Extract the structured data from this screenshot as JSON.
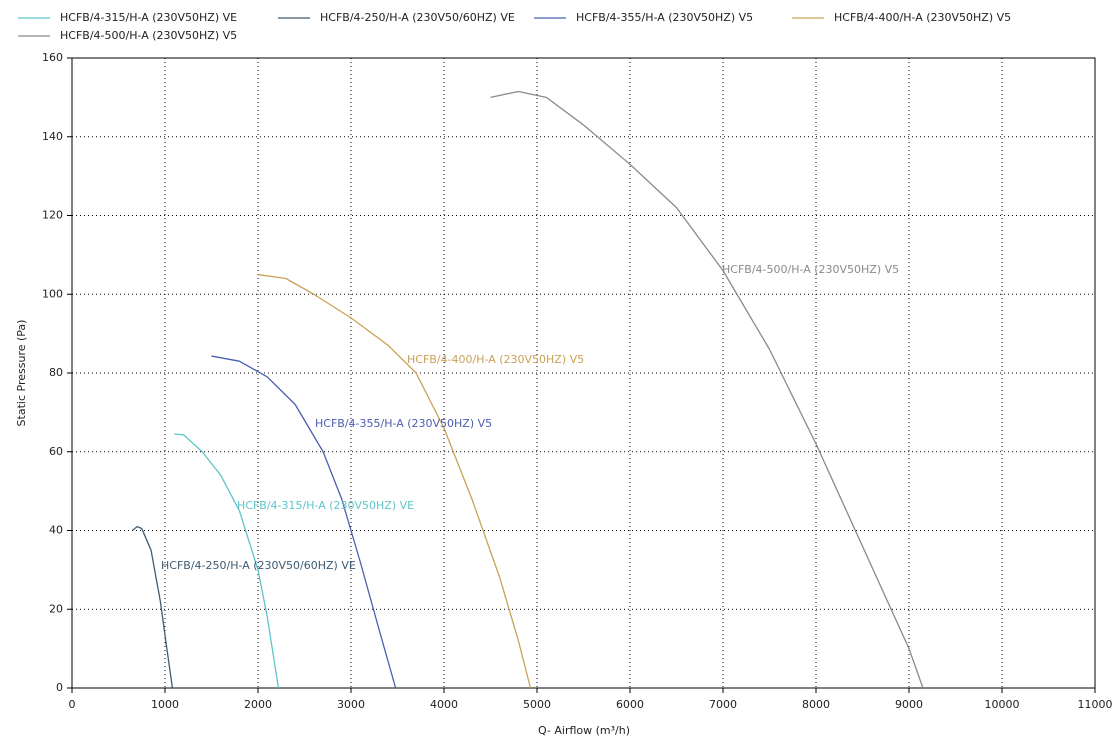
{
  "chart_data": {
    "type": "line",
    "xlabel": "Q- Airflow (m³/h)",
    "ylabel": "Static Pressure (Pa)",
    "xlim": [
      0,
      11000
    ],
    "xticks": [
      0,
      1000,
      2000,
      3000,
      4000,
      5000,
      6000,
      7000,
      8000,
      9000,
      10000,
      11000
    ],
    "ylim": [
      0,
      160
    ],
    "yticks": [
      0,
      20,
      40,
      60,
      80,
      100,
      120,
      140,
      160
    ],
    "grid": true,
    "legend": "top",
    "series": [
      {
        "name": "HCFB/4-315/H-A (230V50HZ) VE",
        "color": "#5fc3cb",
        "x": [
          1100,
          1200,
          1400,
          1600,
          1800,
          2000,
          2100,
          2200,
          2220
        ],
        "values": [
          64.5,
          64.3,
          60,
          54,
          45,
          30,
          18,
          3,
          0
        ]
      },
      {
        "name": "HCFB/4-250/H-A (230V50/60HZ) VE",
        "color": "#3e5b72",
        "x": [
          650,
          700,
          750,
          850,
          950,
          1020,
          1080
        ],
        "values": [
          40,
          41,
          40.5,
          35,
          22,
          10,
          0
        ]
      },
      {
        "name": "HCFB/4-355/H-A (230V50HZ) V5",
        "color": "#4b5fb2",
        "x": [
          1500,
          1800,
          2100,
          2400,
          2700,
          2900,
          3100,
          3300,
          3480
        ],
        "values": [
          84.3,
          83,
          79,
          72,
          60,
          48,
          32,
          15,
          0
        ]
      },
      {
        "name": "HCFB/4-400/H-A (230V50HZ) V5",
        "color": "#c9a257",
        "x": [
          2000,
          2300,
          2600,
          3000,
          3400,
          3700,
          4000,
          4300,
          4600,
          4800,
          4930
        ],
        "values": [
          105,
          104,
          100,
          94,
          87,
          80,
          66,
          48,
          28,
          12,
          0
        ]
      },
      {
        "name": "HCFB/4-500/H-A (230V50HZ) V5",
        "color": "#8a8a8a",
        "x": [
          4500,
          4800,
          5100,
          5500,
          6000,
          6500,
          7000,
          7500,
          8000,
          8500,
          9000,
          9150
        ],
        "values": [
          150,
          151.5,
          150,
          143,
          133,
          122,
          106,
          86,
          62,
          36,
          10,
          0
        ]
      }
    ],
    "annotations": [
      "HCFB/4-315/H-A (230V50HZ) VE",
      "HCFB/4-250/H-A (230V50/60HZ) VE",
      "HCFB/4-355/H-A (230V50HZ) V5",
      "HCFB/4-400/H-A (230V50HZ) V5",
      "HCFB/4-500/H-A (230V50HZ) V5"
    ]
  }
}
